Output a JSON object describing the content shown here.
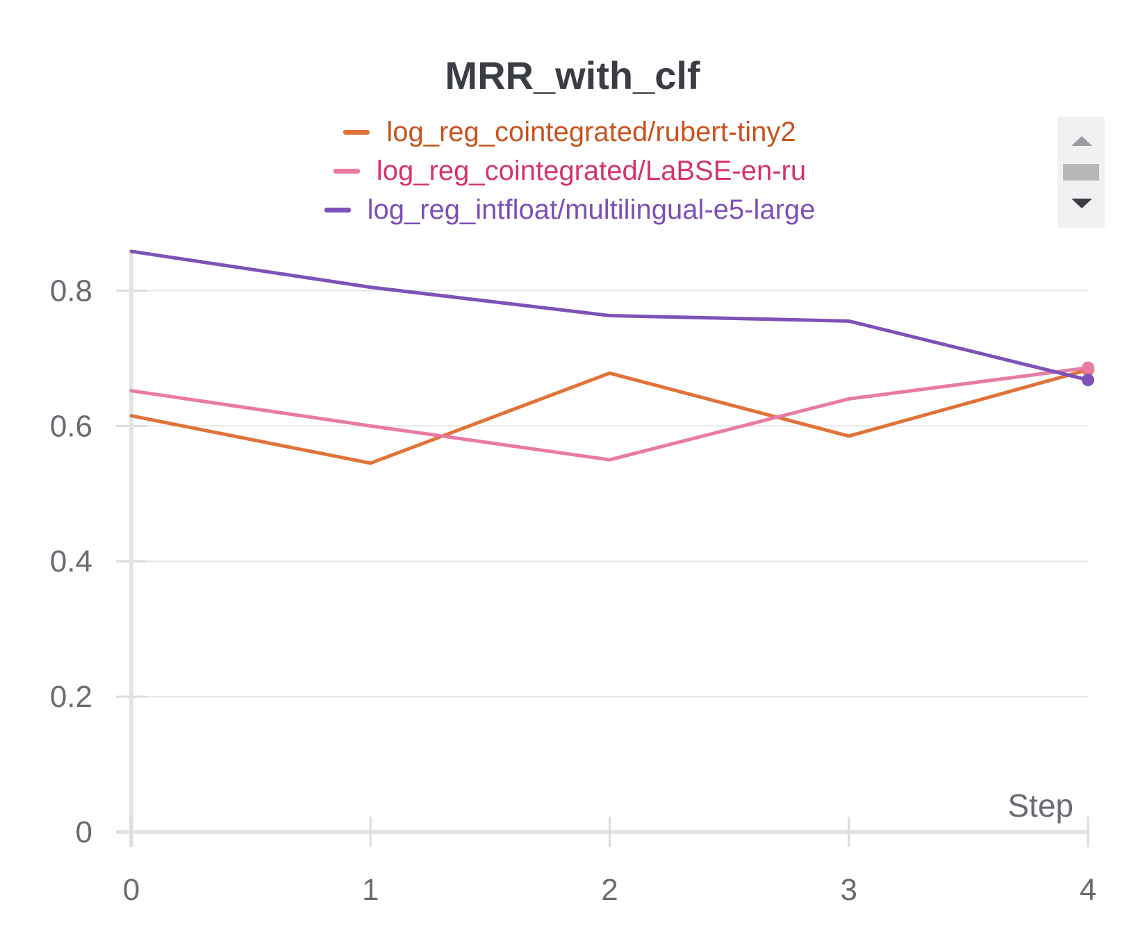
{
  "chart_data": {
    "type": "line",
    "title": "MRR_with_clf",
    "xlabel": "Step",
    "ylabel": "",
    "x": [
      0,
      1,
      2,
      3,
      4
    ],
    "xlim": [
      0,
      4
    ],
    "ylim": [
      0,
      0.86
    ],
    "x_ticks": [
      "0",
      "1",
      "2",
      "3",
      "4"
    ],
    "y_ticks": [
      "0",
      "0.2",
      "0.4",
      "0.6",
      "0.8"
    ],
    "y_tick_values": [
      0,
      0.2,
      0.4,
      0.6,
      0.8
    ],
    "grid": true,
    "legend_position": "top",
    "series": [
      {
        "name": "log_reg_cointegrated/rubert-tiny2",
        "color": "#e07338",
        "text_color": "#c8531e",
        "values": [
          0.615,
          0.545,
          0.678,
          0.585,
          0.683
        ]
      },
      {
        "name": "log_reg_cointegrated/LaBSE-en-ru",
        "color": "#e87aa4",
        "text_color": "#d6336c",
        "values": [
          0.652,
          0.6,
          0.55,
          0.64,
          0.686
        ]
      },
      {
        "name": "log_reg_intfloat/multilingual-e5-large",
        "color": "#7e52b8",
        "text_color": "#7c4fb8",
        "values": [
          0.858,
          0.805,
          0.763,
          0.755,
          0.668
        ]
      }
    ]
  },
  "legend_scroller": {
    "up_icon": "triangle-up-icon",
    "down_icon": "triangle-down-icon"
  }
}
